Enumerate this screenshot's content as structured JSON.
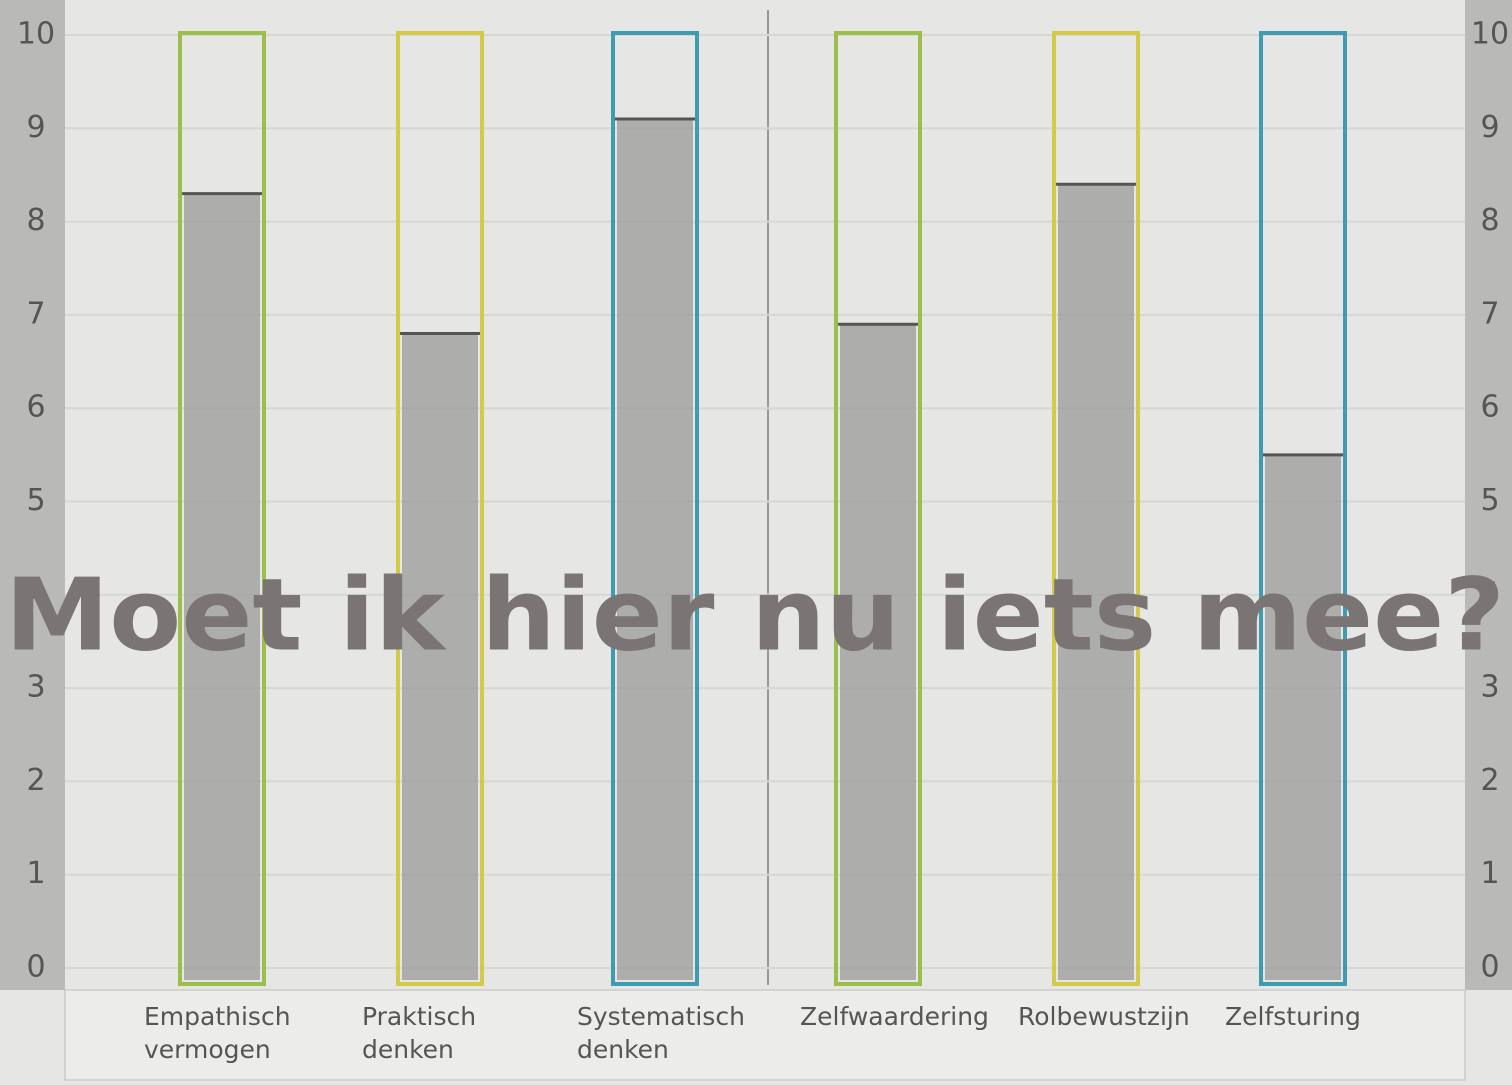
{
  "chart_data": {
    "type": "bar",
    "categories": [
      "Empathisch vermogen",
      "Praktisch denken",
      "Systematisch denken",
      "Zelfwaardering",
      "Rolbewustzijn",
      "Zelfsturing"
    ],
    "values": [
      8.3,
      6.8,
      9.1,
      6.9,
      8.4,
      5.5
    ],
    "colors": [
      "#9bbf4a",
      "#d4c94a",
      "#3f9bb0",
      "#9bbf4a",
      "#d4c94a",
      "#3f9bb0"
    ],
    "fill": "#9a9a9a",
    "ylim": [
      0,
      10
    ],
    "yticks": [
      0,
      1,
      2,
      3,
      4,
      5,
      6,
      7,
      8,
      9,
      10
    ],
    "grid": true,
    "annotation": "Moet ik hier nu iets mee?"
  }
}
